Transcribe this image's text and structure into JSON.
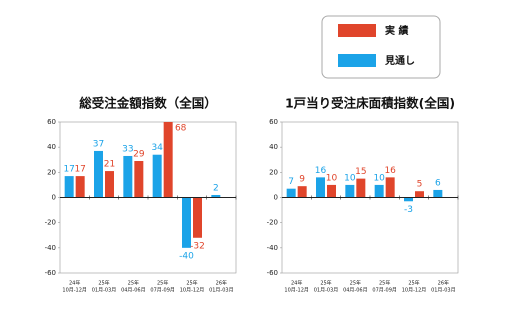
{
  "chart_data": [
    {
      "type": "bar",
      "title": "総受注金額指数（全国）",
      "categories": [
        [
          "24年",
          "10月-12月"
        ],
        [
          "25年",
          "01月-03月"
        ],
        [
          "25年",
          "04月-06月"
        ],
        [
          "25年",
          "07月-09月"
        ],
        [
          "25年",
          "10月-12月"
        ],
        [
          "26年",
          "01月-03月"
        ]
      ],
      "series": [
        {
          "name": "見通し",
          "color": "#1ba3e8",
          "values": [
            17,
            37,
            33,
            34,
            -40,
            2
          ]
        },
        {
          "name": "実 績",
          "color": "#e0452b",
          "values": [
            17,
            21,
            29,
            68,
            -32,
            null
          ]
        }
      ],
      "ylim": [
        -60,
        60
      ],
      "yticks": [
        -60,
        -40,
        -20,
        0,
        20,
        40,
        60
      ]
    },
    {
      "type": "bar",
      "title": "1戸当り受注床面積指数(全国)",
      "categories": [
        [
          "24年",
          "10月-12月"
        ],
        [
          "25年",
          "01月-03月"
        ],
        [
          "25年",
          "04月-06月"
        ],
        [
          "25年",
          "07月-09月"
        ],
        [
          "25年",
          "10月-12月"
        ],
        [
          "26年",
          "01月-03月"
        ]
      ],
      "series": [
        {
          "name": "見通し",
          "color": "#1ba3e8",
          "values": [
            7,
            16,
            10,
            10,
            -3,
            6
          ]
        },
        {
          "name": "実 績",
          "color": "#e0452b",
          "values": [
            9,
            10,
            15,
            16,
            5,
            null
          ]
        }
      ],
      "ylim": [
        -60,
        60
      ],
      "yticks": [
        -60,
        -40,
        -20,
        0,
        20,
        40,
        60
      ]
    }
  ]
}
